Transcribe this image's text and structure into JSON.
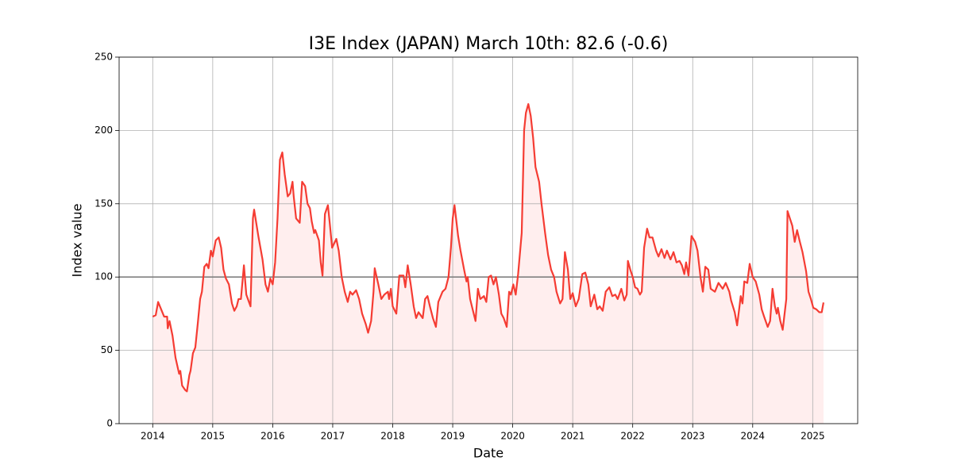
{
  "chart_data": {
    "type": "line",
    "title": "I3E Index (JAPAN) March 10th: 82.6 (-0.6)",
    "x_label": "Date",
    "y_label": "Index value",
    "color": "#f53c33",
    "fill_color": "#ffeeee",
    "grid": true,
    "reference_line": {
      "value": 100,
      "color": "#808080"
    },
    "xlim": [
      2013.44,
      2025.75
    ],
    "xticks": [
      2014,
      2015,
      2016,
      2017,
      2018,
      2019,
      2020,
      2021,
      2022,
      2023,
      2024,
      2025
    ],
    "ylim": [
      0,
      250
    ],
    "yticks": [
      0,
      50,
      100,
      150,
      200,
      250
    ],
    "x": [
      2014.0,
      2014.05,
      2014.09,
      2014.15,
      2014.19,
      2014.24,
      2014.25,
      2014.28,
      2014.33,
      2014.38,
      2014.44,
      2014.46,
      2014.49,
      2014.54,
      2014.57,
      2014.61,
      2014.63,
      2014.67,
      2014.71,
      2014.75,
      2014.79,
      2014.82,
      2014.86,
      2014.9,
      2014.93,
      2014.97,
      2015.0,
      2015.05,
      2015.1,
      2015.14,
      2015.18,
      2015.22,
      2015.27,
      2015.32,
      2015.36,
      2015.4,
      2015.43,
      2015.47,
      2015.52,
      2015.56,
      2015.63,
      2015.67,
      2015.69,
      2015.76,
      2015.83,
      2015.88,
      2015.92,
      2015.96,
      2016.0,
      2016.04,
      2016.08,
      2016.12,
      2016.16,
      2016.2,
      2016.25,
      2016.29,
      2016.33,
      2016.35,
      2016.39,
      2016.45,
      2016.49,
      2016.54,
      2016.58,
      2016.62,
      2016.65,
      2016.69,
      2016.71,
      2016.77,
      2016.8,
      2016.83,
      2016.87,
      2016.92,
      2016.95,
      2016.99,
      2017.06,
      2017.1,
      2017.15,
      2017.2,
      2017.25,
      2017.29,
      2017.33,
      2017.39,
      2017.44,
      2017.49,
      2017.55,
      2017.59,
      2017.64,
      2017.68,
      2017.7,
      2017.76,
      2017.81,
      2017.86,
      2017.92,
      2017.94,
      2017.97,
      2018.0,
      2018.06,
      2018.11,
      2018.18,
      2018.21,
      2018.25,
      2018.3,
      2018.35,
      2018.39,
      2018.43,
      2018.5,
      2018.54,
      2018.58,
      2018.62,
      2018.67,
      2018.72,
      2018.76,
      2018.83,
      2018.88,
      2018.93,
      2018.97,
      2019.0,
      2019.03,
      2019.09,
      2019.13,
      2019.19,
      2019.23,
      2019.25,
      2019.29,
      2019.35,
      2019.38,
      2019.42,
      2019.46,
      2019.52,
      2019.56,
      2019.6,
      2019.64,
      2019.68,
      2019.72,
      2019.77,
      2019.81,
      2019.85,
      2019.9,
      2019.94,
      2019.97,
      2020.01,
      2020.05,
      2020.09,
      2020.15,
      2020.19,
      2020.22,
      2020.26,
      2020.3,
      2020.34,
      2020.38,
      2020.44,
      2020.48,
      2020.54,
      2020.59,
      2020.64,
      2020.69,
      2020.73,
      2020.79,
      2020.83,
      2020.87,
      2020.92,
      2020.96,
      2021.0,
      2021.05,
      2021.1,
      2021.16,
      2021.21,
      2021.26,
      2021.3,
      2021.36,
      2021.41,
      2021.45,
      2021.5,
      2021.55,
      2021.61,
      2021.66,
      2021.71,
      2021.75,
      2021.81,
      2021.86,
      2021.9,
      2021.92,
      2021.96,
      2022.0,
      2022.04,
      2022.08,
      2022.12,
      2022.15,
      2022.19,
      2022.24,
      2022.28,
      2022.33,
      2022.39,
      2022.43,
      2022.48,
      2022.53,
      2022.57,
      2022.63,
      2022.68,
      2022.73,
      2022.78,
      2022.82,
      2022.86,
      2022.89,
      2022.93,
      2022.98,
      2023.04,
      2023.08,
      2023.13,
      2023.17,
      2023.21,
      2023.26,
      2023.3,
      2023.37,
      2023.43,
      2023.5,
      2023.55,
      2023.61,
      2023.64,
      2023.7,
      2023.74,
      2023.78,
      2023.8,
      2023.83,
      2023.86,
      2023.91,
      2023.95,
      2024.0,
      2024.05,
      2024.11,
      2024.15,
      2024.19,
      2024.25,
      2024.29,
      2024.33,
      2024.37,
      2024.4,
      2024.42,
      2024.46,
      2024.5,
      2024.56,
      2024.58,
      2024.62,
      2024.66,
      2024.7,
      2024.74,
      2024.78,
      2024.83,
      2024.89,
      2024.93,
      2024.97,
      2025.01,
      2025.06,
      2025.11,
      2025.15,
      2025.18
    ],
    "values": [
      73,
      74,
      83,
      77,
      73,
      73,
      65,
      70,
      60,
      45,
      34,
      36,
      26,
      23,
      22,
      33,
      36,
      48,
      52,
      68,
      85,
      90,
      107,
      109,
      106,
      118,
      114,
      125,
      127,
      120,
      105,
      99,
      95,
      82,
      77,
      80,
      85,
      85,
      108,
      88,
      80,
      140,
      146,
      128,
      112,
      95,
      90,
      99,
      95,
      110,
      140,
      180,
      185,
      170,
      155,
      157,
      165,
      155,
      140,
      137,
      165,
      162,
      150,
      147,
      138,
      130,
      132,
      125,
      110,
      101,
      143,
      149,
      137,
      120,
      126,
      118,
      100,
      90,
      83,
      90,
      88,
      91,
      85,
      75,
      68,
      62,
      70,
      90,
      106,
      95,
      85,
      88,
      90,
      85,
      92,
      80,
      75,
      101,
      101,
      93,
      108,
      95,
      80,
      72,
      76,
      72,
      85,
      87,
      80,
      72,
      66,
      83,
      90,
      92,
      100,
      120,
      140,
      149,
      128,
      118,
      105,
      97,
      100,
      85,
      75,
      70,
      92,
      85,
      87,
      83,
      100,
      101,
      95,
      100,
      88,
      75,
      72,
      66,
      90,
      88,
      95,
      88,
      102,
      130,
      200,
      212,
      218,
      210,
      195,
      175,
      165,
      150,
      130,
      115,
      105,
      100,
      90,
      82,
      85,
      117,
      105,
      85,
      89,
      80,
      85,
      102,
      103,
      95,
      80,
      88,
      78,
      80,
      77,
      90,
      93,
      87,
      88,
      85,
      92,
      84,
      88,
      111,
      105,
      100,
      93,
      92,
      88,
      90,
      120,
      133,
      127,
      127,
      118,
      114,
      119,
      113,
      118,
      112,
      117,
      110,
      111,
      108,
      102,
      110,
      101,
      128,
      124,
      118,
      100,
      90,
      107,
      105,
      92,
      90,
      96,
      92,
      96,
      90,
      84,
      76,
      67,
      80,
      87,
      82,
      97,
      96,
      109,
      100,
      97,
      88,
      78,
      73,
      66,
      70,
      92,
      80,
      75,
      79,
      70,
      64,
      85,
      145,
      140,
      135,
      124,
      132,
      125,
      117,
      104,
      90,
      85,
      79,
      78,
      76,
      76,
      82.6
    ]
  }
}
